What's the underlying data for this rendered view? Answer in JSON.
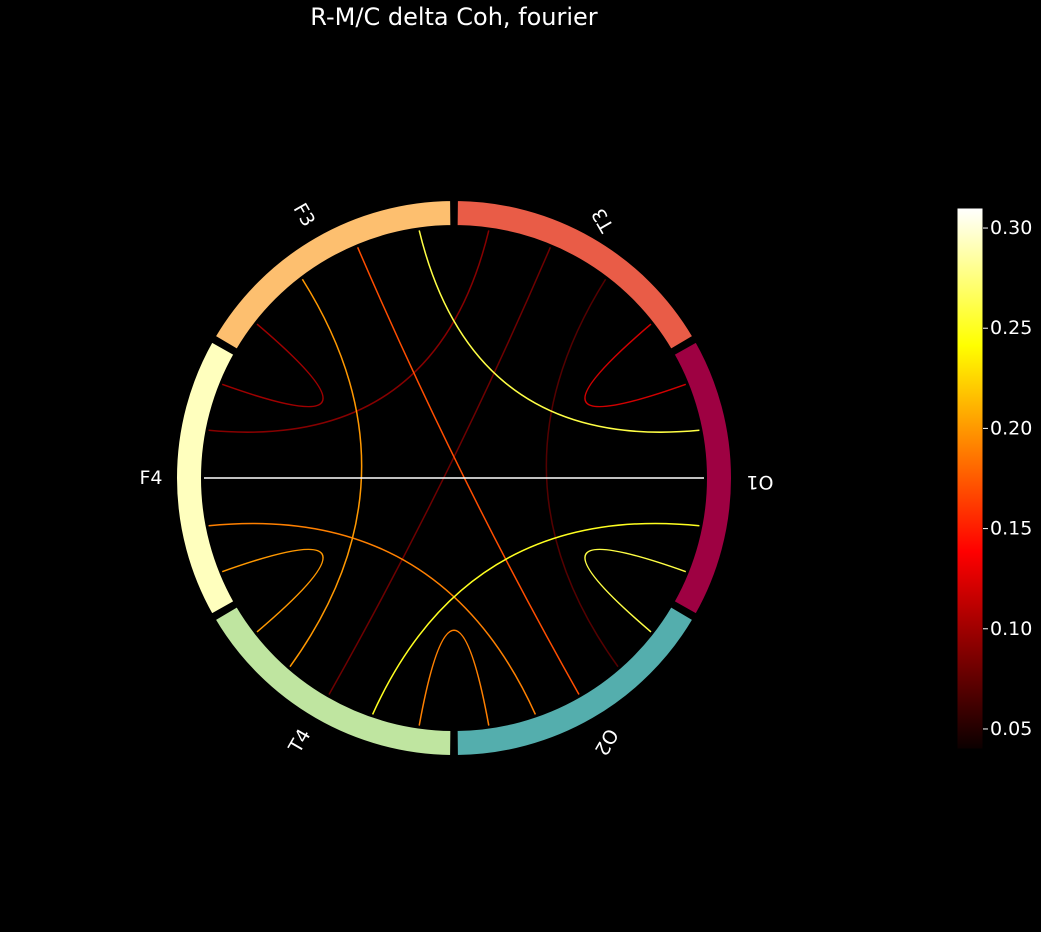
{
  "title": "R-M/C delta Coh, fourier",
  "chart_data": {
    "type": "chord",
    "nodes": [
      {
        "name": "O1",
        "color": "#9e0142"
      },
      {
        "name": "T3",
        "color": "#e95c47"
      },
      {
        "name": "F3",
        "color": "#fdbf6f"
      },
      {
        "name": "F4",
        "color": "#ffffbe"
      },
      {
        "name": "T4",
        "color": "#bfe5a0"
      },
      {
        "name": "O2",
        "color": "#54aead"
      }
    ],
    "connections": [
      {
        "source": "F4",
        "target": "O1",
        "value": 0.31
      },
      {
        "source": "F3",
        "target": "O1",
        "value": 0.26
      },
      {
        "source": "T4",
        "target": "O1",
        "value": 0.25
      },
      {
        "source": "O2",
        "target": "O1",
        "value": 0.26
      },
      {
        "source": "F3",
        "target": "T4",
        "value": 0.2
      },
      {
        "source": "F3",
        "target": "O2",
        "value": 0.17
      },
      {
        "source": "F4",
        "target": "T4",
        "value": 0.2
      },
      {
        "source": "F4",
        "target": "O2",
        "value": 0.19
      },
      {
        "source": "T4",
        "target": "O2",
        "value": 0.19
      },
      {
        "source": "T3",
        "target": "O1",
        "value": 0.12
      },
      {
        "source": "F3",
        "target": "F4",
        "value": 0.1
      },
      {
        "source": "T3",
        "target": "F4",
        "value": 0.09
      },
      {
        "source": "T3",
        "target": "T4",
        "value": 0.08
      },
      {
        "source": "T3",
        "target": "O2",
        "value": 0.07
      }
    ],
    "colorbar": {
      "colormap": "hot",
      "range": [
        0.04,
        0.31
      ],
      "ticks": [
        "0.05",
        "0.10",
        "0.15",
        "0.20",
        "0.25",
        "0.30"
      ],
      "tick_values": [
        0.05,
        0.1,
        0.15,
        0.2,
        0.25,
        0.3
      ]
    }
  }
}
